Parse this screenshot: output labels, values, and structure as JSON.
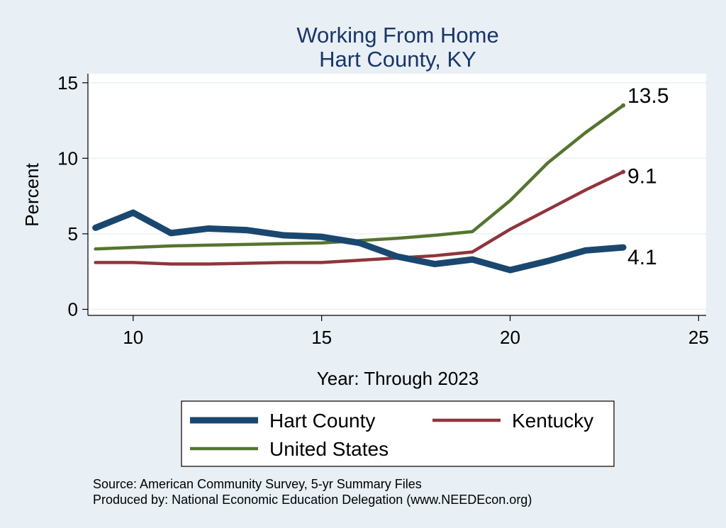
{
  "chart_data": {
    "type": "line",
    "title": "Working From Home",
    "subtitle": "Hart County, KY",
    "xlabel": "Year: Through 2023",
    "ylabel": "Percent",
    "xlim": [
      8.8,
      25.2
    ],
    "ylim": [
      -0.4,
      15.6
    ],
    "xticks": [
      10,
      15,
      20,
      25
    ],
    "yticks": [
      0,
      5,
      10,
      15
    ],
    "grid": "horizontal",
    "legend_position": "bottom",
    "x": [
      9,
      10,
      11,
      12,
      13,
      14,
      15,
      16,
      17,
      18,
      19,
      20,
      21,
      22,
      23
    ],
    "series": [
      {
        "name": "Hart County",
        "color": "#1a476f",
        "values": [
          5.4,
          6.4,
          5.05,
          5.35,
          5.25,
          4.9,
          4.8,
          4.4,
          3.5,
          3.0,
          3.3,
          2.6,
          3.2,
          3.9,
          4.1
        ],
        "end_label": "4.1"
      },
      {
        "name": "Kentucky",
        "color": "#90353b",
        "values": [
          3.1,
          3.1,
          3.0,
          3.0,
          3.05,
          3.1,
          3.1,
          3.25,
          3.4,
          3.55,
          3.8,
          5.3,
          6.6,
          7.9,
          9.1
        ],
        "end_label": "9.1"
      },
      {
        "name": "United States",
        "color": "#55752f",
        "values": [
          4.0,
          4.1,
          4.2,
          4.25,
          4.3,
          4.35,
          4.4,
          4.55,
          4.7,
          4.9,
          5.15,
          7.2,
          9.7,
          11.7,
          13.5
        ],
        "end_label": "13.5"
      }
    ]
  },
  "notes": {
    "source": "Source: American Community Survey, 5-yr Summary Files",
    "produced": "Produced by: National Economic Education Delegation (www.NEEDEcon.org)"
  }
}
